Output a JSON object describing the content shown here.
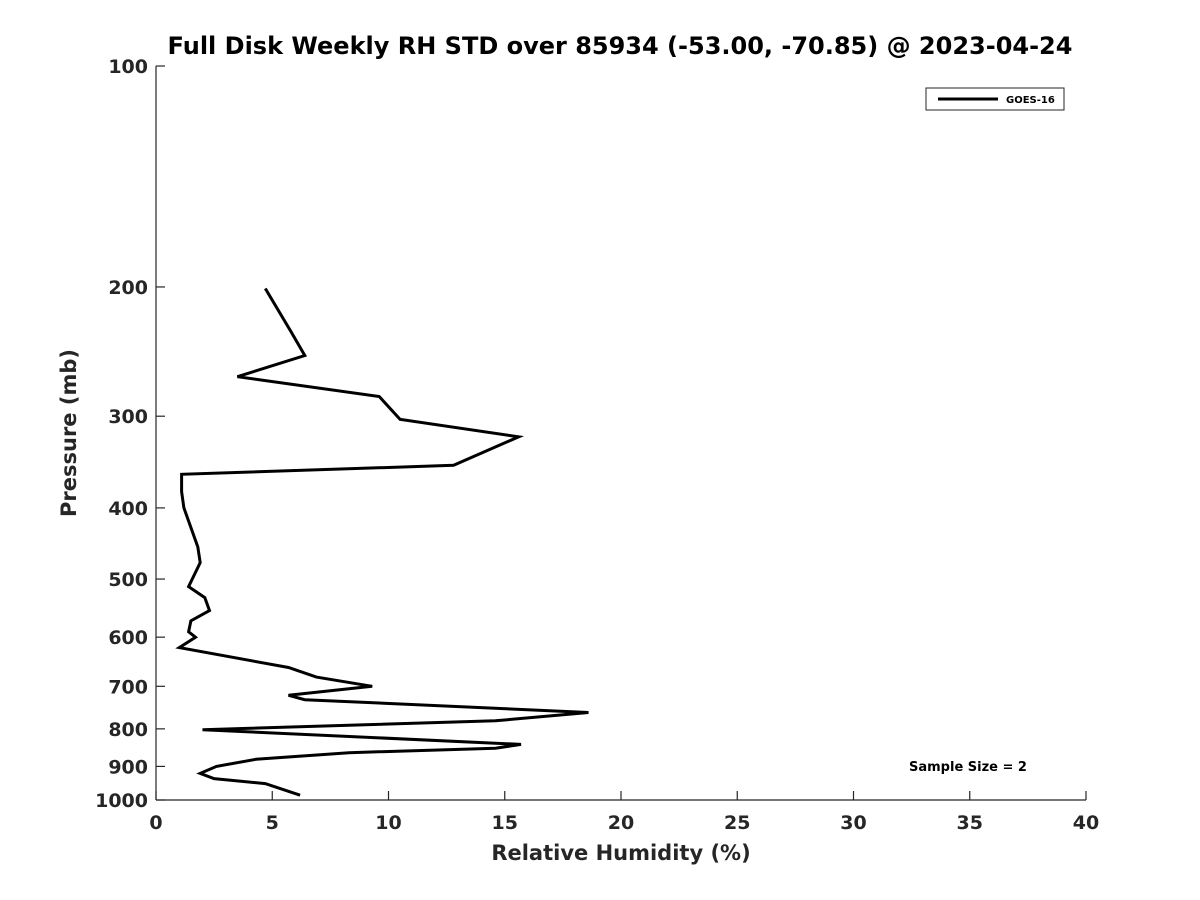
{
  "chart_data": {
    "type": "line",
    "title": "Full Disk Weekly RH STD over 85934 (-53.00, -70.85) @ 2023-04-24",
    "xlabel": "Relative Humidity (%)",
    "ylabel": "Pressure (mb)",
    "xlim": [
      0,
      40
    ],
    "ylim": [
      100,
      1000
    ],
    "y_scale": "log",
    "y_reversed": true,
    "grid": false,
    "legend_position": "top-right",
    "x_ticks": [
      0,
      5,
      10,
      15,
      20,
      25,
      30,
      35,
      40
    ],
    "y_ticks": [
      100,
      200,
      300,
      400,
      500,
      600,
      700,
      800,
      900,
      1000
    ],
    "series": [
      {
        "name": "GOES-16",
        "color": "#000000",
        "points": [
          [
            6.2,
            985
          ],
          [
            4.7,
            950
          ],
          [
            2.5,
            935
          ],
          [
            1.9,
            920
          ],
          [
            2.6,
            900
          ],
          [
            4.3,
            880
          ],
          [
            8.3,
            862
          ],
          [
            14.6,
            850
          ],
          [
            15.7,
            840
          ],
          [
            2.0,
            802
          ],
          [
            14.6,
            780
          ],
          [
            18.6,
            760
          ],
          [
            6.4,
            730
          ],
          [
            5.7,
            720
          ],
          [
            9.3,
            700
          ],
          [
            6.9,
            680
          ],
          [
            5.7,
            660
          ],
          [
            1.0,
            620
          ],
          [
            1.7,
            600
          ],
          [
            1.4,
            590
          ],
          [
            1.5,
            570
          ],
          [
            2.3,
            552
          ],
          [
            2.1,
            530
          ],
          [
            1.4,
            512
          ],
          [
            1.9,
            475
          ],
          [
            1.8,
            452
          ],
          [
            1.2,
            400
          ],
          [
            1.1,
            380
          ],
          [
            1.1,
            360
          ],
          [
            12.8,
            350
          ],
          [
            15.6,
            320
          ],
          [
            10.5,
            303
          ],
          [
            9.6,
            282
          ],
          [
            3.5,
            265
          ],
          [
            6.4,
            248
          ],
          [
            5.8,
            230
          ],
          [
            4.7,
            201
          ]
        ]
      }
    ],
    "annotation": "Sample Size = 2"
  }
}
